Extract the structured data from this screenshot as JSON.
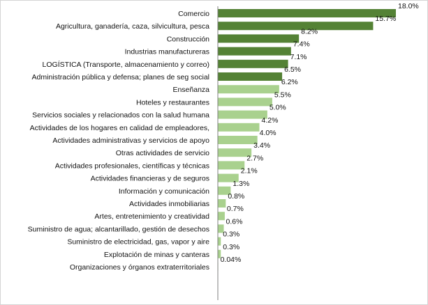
{
  "chart_data": {
    "type": "bar",
    "orientation": "horizontal",
    "title": "",
    "xlabel": "",
    "ylabel": "",
    "xlim": [
      0,
      18
    ],
    "grid": false,
    "legend": "none",
    "colors": {
      "highlight": "#548235",
      "normal": "#a9d18e"
    },
    "categories": [
      "Comercio",
      "Agricultura,  ganadería, caza, silvicultura, pesca",
      "Construcción",
      "Industrias manufactureras",
      "LOGÍSTICA (Transporte, almacenamiento y correo)",
      "Administración pública y defensa; planes de seg social",
      "Enseñanza",
      "Hoteles y restaurantes",
      "Servicios sociales y relacionados con la salud humana",
      "Actividades de los hogares en calidad de empleadores,",
      "Actividades administrativas y servicios de apoyo",
      "Otras actividades de servicio",
      "Actividades profesionales, científicas y técnicas",
      "Actividades financieras y de seguros",
      "Información y comunicación",
      "Actividades inmobiliarias",
      "Artes, entretenimiento y creatividad",
      "Suministro de agua; alcantarillado, gestión de desechos",
      "Suministro de  electricidad,  gas, vapor y aire",
      "Explotación de minas y canteras",
      "Organizaciones y órganos extraterritoriales",
      ""
    ],
    "values": [
      18.0,
      15.7,
      8.2,
      7.4,
      7.1,
      6.5,
      6.2,
      5.5,
      5.0,
      4.2,
      4.0,
      3.4,
      2.7,
      2.1,
      1.3,
      0.8,
      0.7,
      0.6,
      0.3,
      0.3,
      0.04,
      0.02
    ],
    "labels": [
      "18.0%",
      "15.7%",
      "8.2%",
      "7.4%",
      "7.1%",
      "6.5%",
      "6.2%",
      "5.5%",
      "5.0%",
      "4.2%",
      "4.0%",
      "3.4%",
      "2.7%",
      "2.1%",
      "1.3%",
      "0.8%",
      "0.7%",
      "0.6%",
      "0.3%",
      "0.3%",
      "0.04%",
      ""
    ],
    "highlighted": [
      true,
      true,
      true,
      true,
      true,
      true,
      false,
      false,
      false,
      false,
      false,
      false,
      false,
      false,
      false,
      false,
      false,
      false,
      false,
      false,
      false,
      false
    ]
  }
}
